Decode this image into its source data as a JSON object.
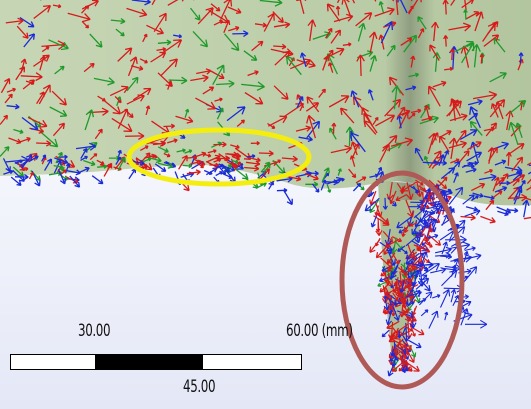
{
  "scale_bar": {
    "label_left": "30.00",
    "label_right": "60.00 (mm)",
    "label_mid": "45.00"
  },
  "colors": {
    "solid_green": "#b9cba6",
    "vector_red": "#d81a1a",
    "vector_blue": "#1a2ad8",
    "vector_green": "#1f9a2a",
    "highlight_yellow": "#f4ee10",
    "highlight_brown": "#b05a57"
  },
  "annotations": [
    "yellow-ellipse",
    "brown-ellipse"
  ],
  "icons": [
    "velocity-vector-arrow"
  ]
}
